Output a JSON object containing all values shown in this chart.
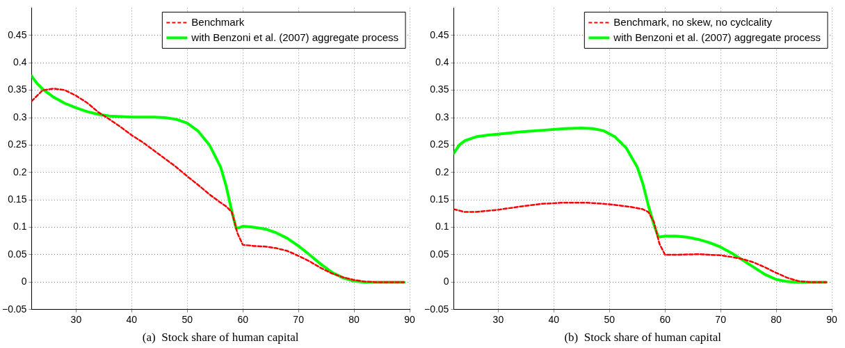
{
  "chart_data": [
    {
      "type": "line",
      "xlabel": "(a)  Stock share of human capital",
      "xlim": [
        22,
        90
      ],
      "xticks": [
        30,
        40,
        50,
        60,
        70,
        80,
        90
      ],
      "ylim": [
        -0.05,
        0.5
      ],
      "yticks": [
        -0.05,
        0,
        0.05,
        0.1,
        0.15,
        0.2,
        0.25,
        0.3,
        0.35,
        0.4,
        0.45
      ],
      "grid": true,
      "legend": "top right",
      "marker": "none",
      "series": [
        {
          "name": "Benchmark",
          "color": "#ff0000",
          "line_style": "dashed",
          "x": [
            22,
            24,
            26,
            28,
            30,
            32,
            34,
            36,
            38,
            40,
            42,
            44,
            46,
            48,
            50,
            52,
            54,
            56,
            57,
            58,
            58.5,
            59,
            60,
            62,
            64,
            66,
            68,
            70,
            72,
            74,
            76,
            78,
            80,
            82,
            84,
            89
          ],
          "values": [
            0.33,
            0.35,
            0.353,
            0.35,
            0.34,
            0.327,
            0.31,
            0.297,
            0.283,
            0.268,
            0.255,
            0.24,
            0.225,
            0.21,
            0.193,
            0.177,
            0.16,
            0.145,
            0.138,
            0.128,
            0.11,
            0.09,
            0.068,
            0.066,
            0.065,
            0.062,
            0.057,
            0.048,
            0.038,
            0.026,
            0.016,
            0.009,
            0.004,
            0.001,
            0,
            0
          ]
        },
        {
          "name": "with Benzoni et al. (2007) aggregate process",
          "color": "#00ff00",
          "line_style": "solid",
          "x": [
            22,
            23,
            24,
            26,
            28,
            30,
            32,
            34,
            36,
            40,
            44,
            46,
            48,
            50,
            52,
            54,
            56,
            57,
            58,
            58.8,
            59.5,
            60,
            62,
            64,
            66,
            68,
            70,
            72,
            74,
            76,
            78,
            80,
            82,
            89
          ],
          "values": [
            0.376,
            0.362,
            0.352,
            0.337,
            0.326,
            0.318,
            0.311,
            0.306,
            0.303,
            0.301,
            0.301,
            0.3,
            0.297,
            0.29,
            0.275,
            0.25,
            0.21,
            0.175,
            0.13,
            0.098,
            0.1,
            0.102,
            0.1,
            0.097,
            0.09,
            0.08,
            0.066,
            0.05,
            0.033,
            0.018,
            0.008,
            0.002,
            0,
            0
          ]
        }
      ]
    },
    {
      "type": "line",
      "xlabel": "(b)  Stock share of human capital",
      "xlim": [
        22,
        90
      ],
      "xticks": [
        30,
        40,
        50,
        60,
        70,
        80,
        90
      ],
      "ylim": [
        -0.05,
        0.5
      ],
      "yticks": [
        -0.05,
        0,
        0.05,
        0.1,
        0.15,
        0.2,
        0.25,
        0.3,
        0.35,
        0.4,
        0.45
      ],
      "grid": true,
      "legend": "top right",
      "marker": "none",
      "series": [
        {
          "name": "Benchmark, no skew, no cyclcality",
          "color": "#ff0000",
          "line_style": "dashed",
          "x": [
            22,
            24,
            26,
            28,
            30,
            34,
            38,
            42,
            46,
            50,
            54,
            56,
            57,
            58,
            59,
            60,
            62,
            66,
            70,
            72,
            74,
            76,
            78,
            80,
            82,
            84,
            86,
            89
          ],
          "values": [
            0.133,
            0.128,
            0.128,
            0.13,
            0.132,
            0.138,
            0.143,
            0.145,
            0.145,
            0.142,
            0.137,
            0.133,
            0.128,
            0.11,
            0.07,
            0.05,
            0.05,
            0.051,
            0.049,
            0.046,
            0.042,
            0.036,
            0.027,
            0.017,
            0.008,
            0.002,
            0,
            0
          ]
        },
        {
          "name": "with Benzoni et al. (2007) aggregate process",
          "color": "#00ff00",
          "line_style": "solid",
          "x": [
            22,
            23,
            24,
            26,
            28,
            30,
            34,
            38,
            42,
            45,
            47,
            49,
            51,
            53,
            55,
            56,
            57,
            58,
            58.8,
            60,
            62,
            64,
            66,
            68,
            70,
            72,
            74,
            76,
            78,
            80,
            82,
            84,
            89
          ],
          "values": [
            0.235,
            0.25,
            0.258,
            0.265,
            0.268,
            0.27,
            0.274,
            0.277,
            0.28,
            0.281,
            0.28,
            0.276,
            0.265,
            0.245,
            0.21,
            0.18,
            0.14,
            0.105,
            0.082,
            0.084,
            0.084,
            0.082,
            0.078,
            0.072,
            0.064,
            0.053,
            0.04,
            0.027,
            0.014,
            0.005,
            0.001,
            0,
            0
          ]
        }
      ]
    }
  ]
}
